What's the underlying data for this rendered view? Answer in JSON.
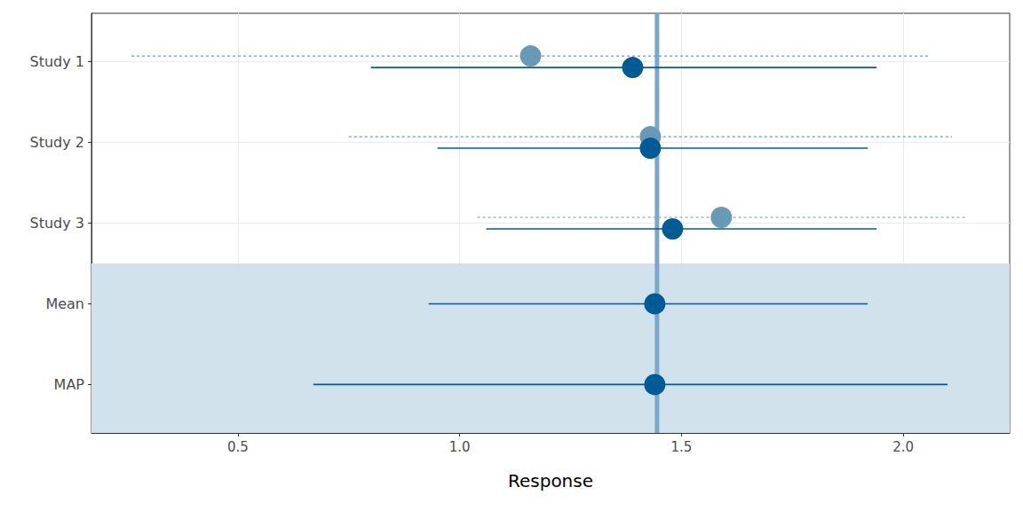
{
  "chart_data": {
    "type": "forest",
    "x_label": "Response",
    "categories": [
      "Study 1",
      "Study 2",
      "Study 3",
      "Mean",
      "MAP"
    ],
    "series": [
      {
        "color": "#6899b5",
        "line_style": "dashed",
        "values": [
          1.16,
          1.43,
          1.59,
          null,
          null
        ],
        "lower": [
          0.26,
          0.75,
          1.04,
          null,
          null
        ],
        "upper": [
          2.06,
          2.11,
          2.14,
          null,
          null
        ]
      },
      {
        "color": "#005b96",
        "line_style": "solid",
        "values": [
          1.39,
          1.43,
          1.48,
          1.44,
          1.44
        ],
        "lower": [
          0.8,
          0.95,
          1.06,
          0.93,
          0.67
        ],
        "upper": [
          1.94,
          1.92,
          1.94,
          1.92,
          2.1
        ]
      }
    ],
    "reference_line": 1.445,
    "xlim": [
      0.17,
      2.24
    ],
    "xticks": [
      0.5,
      {
        "value": 1,
        "label": "1.0"
      },
      1.5,
      {
        "value": 2,
        "label": "2.0"
      }
    ],
    "grid": true
  }
}
